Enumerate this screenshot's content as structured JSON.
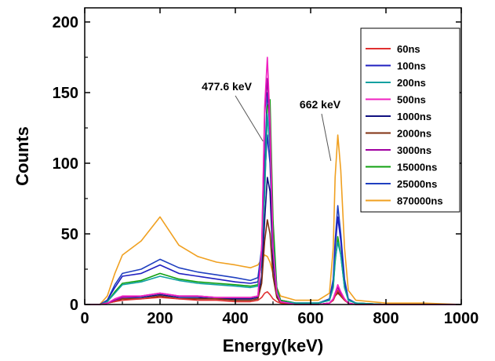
{
  "chart_data": {
    "type": "line",
    "title": "",
    "xlabel": "Energy(keV)",
    "ylabel": "Counts",
    "xlim": [
      0,
      1000
    ],
    "ylim": [
      0,
      210
    ],
    "x_ticks": [
      0,
      200,
      400,
      600,
      800,
      1000
    ],
    "y_ticks": [
      0,
      50,
      100,
      150,
      200
    ],
    "grid": false,
    "legend_position": "top-right",
    "annotations": [
      {
        "text": "477.6 keV",
        "x": 477.6
      },
      {
        "text": "662 keV",
        "x": 662
      }
    ],
    "series": [
      {
        "name": "60ns",
        "color": "#e03030",
        "x": [
          0,
          40,
          60,
          80,
          100,
          150,
          200,
          250,
          300,
          350,
          400,
          440,
          460,
          470,
          478,
          485,
          492,
          500,
          510,
          520,
          560,
          620,
          650,
          660,
          665,
          672,
          680,
          690,
          700,
          720,
          800,
          900,
          1000
        ],
        "values": [
          0,
          0,
          1,
          2,
          3,
          4,
          5,
          4,
          3,
          3,
          2,
          2,
          3,
          5,
          8,
          9,
          7,
          4,
          2,
          1,
          0,
          0,
          1,
          3,
          6,
          10,
          7,
          3,
          1,
          0,
          0,
          0,
          0
        ]
      },
      {
        "name": "100ns",
        "color": "#2020c0",
        "x": [
          0,
          40,
          60,
          80,
          100,
          150,
          200,
          250,
          300,
          350,
          400,
          440,
          460,
          470,
          478,
          485,
          492,
          500,
          510,
          520,
          560,
          620,
          650,
          660,
          665,
          672,
          680,
          690,
          700,
          720,
          800,
          900,
          1000
        ],
        "values": [
          0,
          0,
          3,
          12,
          20,
          22,
          28,
          22,
          20,
          18,
          16,
          15,
          16,
          35,
          90,
          120,
          100,
          40,
          10,
          3,
          1,
          1,
          3,
          15,
          40,
          62,
          45,
          15,
          3,
          1,
          0,
          0,
          0
        ]
      },
      {
        "name": "200ns",
        "color": "#10a0a0",
        "x": [
          0,
          40,
          60,
          80,
          100,
          150,
          200,
          250,
          300,
          350,
          400,
          440,
          460,
          470,
          478,
          485,
          492,
          500,
          510,
          520,
          560,
          620,
          650,
          660,
          665,
          672,
          680,
          690,
          700,
          720,
          800,
          900,
          1000
        ],
        "values": [
          0,
          0,
          2,
          8,
          14,
          16,
          20,
          17,
          15,
          14,
          13,
          12,
          13,
          30,
          80,
          135,
          110,
          45,
          10,
          2,
          1,
          1,
          3,
          12,
          32,
          44,
          35,
          12,
          3,
          1,
          0,
          0,
          0
        ]
      },
      {
        "name": "500ns",
        "color": "#f020c0",
        "x": [
          0,
          40,
          60,
          80,
          100,
          150,
          200,
          250,
          300,
          350,
          400,
          440,
          460,
          470,
          478,
          485,
          492,
          500,
          510,
          520,
          560,
          620,
          650,
          660,
          665,
          672,
          680,
          690,
          700,
          720,
          800,
          900,
          1000
        ],
        "values": [
          0,
          0,
          1,
          4,
          6,
          6,
          8,
          6,
          6,
          5,
          5,
          5,
          6,
          40,
          140,
          175,
          130,
          40,
          8,
          2,
          0,
          0,
          1,
          4,
          8,
          14,
          9,
          4,
          1,
          0,
          0,
          0,
          0
        ]
      },
      {
        "name": "1000ns",
        "color": "#101080",
        "x": [
          0,
          40,
          60,
          80,
          100,
          150,
          200,
          250,
          300,
          350,
          400,
          440,
          460,
          470,
          478,
          485,
          492,
          500,
          510,
          520,
          560,
          620,
          650,
          660,
          665,
          672,
          680,
          690,
          700,
          720,
          800,
          900,
          1000
        ],
        "values": [
          0,
          0,
          1,
          3,
          5,
          5,
          7,
          5,
          5,
          4,
          4,
          4,
          5,
          20,
          60,
          90,
          80,
          30,
          6,
          1,
          0,
          0,
          1,
          3,
          6,
          9,
          6,
          3,
          1,
          0,
          0,
          0,
          0
        ]
      },
      {
        "name": "2000ns",
        "color": "#803010",
        "x": [
          0,
          40,
          60,
          80,
          100,
          150,
          200,
          250,
          300,
          350,
          400,
          440,
          460,
          470,
          478,
          485,
          492,
          500,
          510,
          520,
          560,
          620,
          650,
          660,
          665,
          672,
          680,
          690,
          700,
          720,
          800,
          900,
          1000
        ],
        "values": [
          0,
          0,
          1,
          2,
          4,
          4,
          6,
          4,
          4,
          4,
          3,
          3,
          4,
          15,
          45,
          60,
          50,
          20,
          5,
          1,
          0,
          0,
          1,
          3,
          6,
          8,
          6,
          3,
          1,
          0,
          0,
          0,
          0
        ]
      },
      {
        "name": "3000ns",
        "color": "#a000a0",
        "x": [
          0,
          40,
          60,
          80,
          100,
          150,
          200,
          250,
          300,
          350,
          400,
          440,
          460,
          470,
          478,
          485,
          492,
          500,
          510,
          520,
          560,
          620,
          650,
          660,
          665,
          672,
          680,
          690,
          700,
          720,
          800,
          900,
          1000
        ],
        "values": [
          0,
          0,
          1,
          3,
          5,
          6,
          8,
          6,
          6,
          5,
          5,
          5,
          6,
          38,
          135,
          160,
          120,
          40,
          8,
          2,
          0,
          0,
          1,
          4,
          8,
          12,
          8,
          4,
          1,
          0,
          0,
          0,
          0
        ]
      },
      {
        "name": "15000ns",
        "color": "#10a010",
        "x": [
          0,
          40,
          60,
          80,
          100,
          150,
          200,
          250,
          300,
          350,
          400,
          440,
          460,
          470,
          478,
          485,
          492,
          500,
          510,
          520,
          560,
          620,
          650,
          660,
          665,
          672,
          680,
          690,
          700,
          720,
          800,
          900,
          1000
        ],
        "values": [
          0,
          0,
          2,
          9,
          15,
          17,
          22,
          18,
          16,
          15,
          14,
          13,
          14,
          30,
          80,
          140,
          145,
          60,
          12,
          3,
          1,
          1,
          3,
          12,
          30,
          48,
          35,
          12,
          3,
          1,
          0,
          0,
          0
        ]
      },
      {
        "name": "25000ns",
        "color": "#2040c0",
        "x": [
          0,
          40,
          60,
          80,
          100,
          150,
          200,
          250,
          300,
          350,
          400,
          440,
          460,
          470,
          478,
          485,
          492,
          500,
          510,
          520,
          560,
          620,
          650,
          660,
          665,
          672,
          680,
          690,
          700,
          720,
          800,
          900,
          1000
        ],
        "values": [
          0,
          0,
          3,
          14,
          22,
          25,
          32,
          26,
          23,
          21,
          19,
          17,
          19,
          40,
          100,
          150,
          130,
          50,
          12,
          3,
          1,
          1,
          4,
          18,
          45,
          70,
          50,
          18,
          4,
          1,
          0,
          0,
          0
        ]
      },
      {
        "name": "870000ns",
        "color": "#f0a020",
        "x": [
          0,
          40,
          60,
          80,
          100,
          150,
          200,
          250,
          300,
          350,
          400,
          440,
          460,
          470,
          478,
          485,
          492,
          500,
          510,
          520,
          560,
          620,
          650,
          660,
          665,
          672,
          680,
          690,
          700,
          720,
          800,
          900,
          1000
        ],
        "values": [
          0,
          0,
          6,
          22,
          35,
          45,
          62,
          42,
          34,
          30,
          28,
          26,
          28,
          32,
          35,
          34,
          30,
          22,
          12,
          6,
          3,
          3,
          8,
          40,
          90,
          120,
          95,
          40,
          10,
          3,
          1,
          1,
          0
        ]
      }
    ]
  }
}
